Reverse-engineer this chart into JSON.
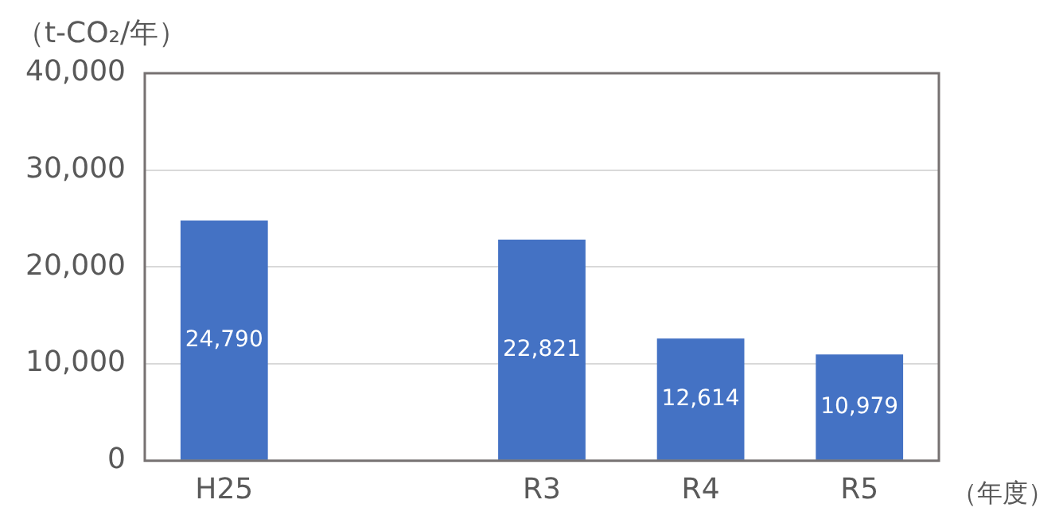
{
  "chart_data": {
    "type": "bar",
    "ylabel": "（t-CO₂/年）",
    "xlabel": "（年度）",
    "categories": [
      "H25",
      null,
      "R3",
      "R4",
      "R5"
    ],
    "values": [
      24790,
      null,
      22821,
      12614,
      10979
    ],
    "color": "#4472c4",
    "ylim": [
      0,
      40000
    ],
    "yticks": [
      {
        "value": 0,
        "label": "0"
      },
      {
        "value": 10000,
        "label": "10,000"
      },
      {
        "value": 20000,
        "label": "20,000"
      },
      {
        "value": 30000,
        "label": "30,000"
      },
      {
        "value": 40000,
        "label": "40,000"
      }
    ],
    "value_labels": [
      "24,790",
      null,
      "22,821",
      "12,614",
      "10,979"
    ],
    "grid": "y",
    "legend": false
  }
}
